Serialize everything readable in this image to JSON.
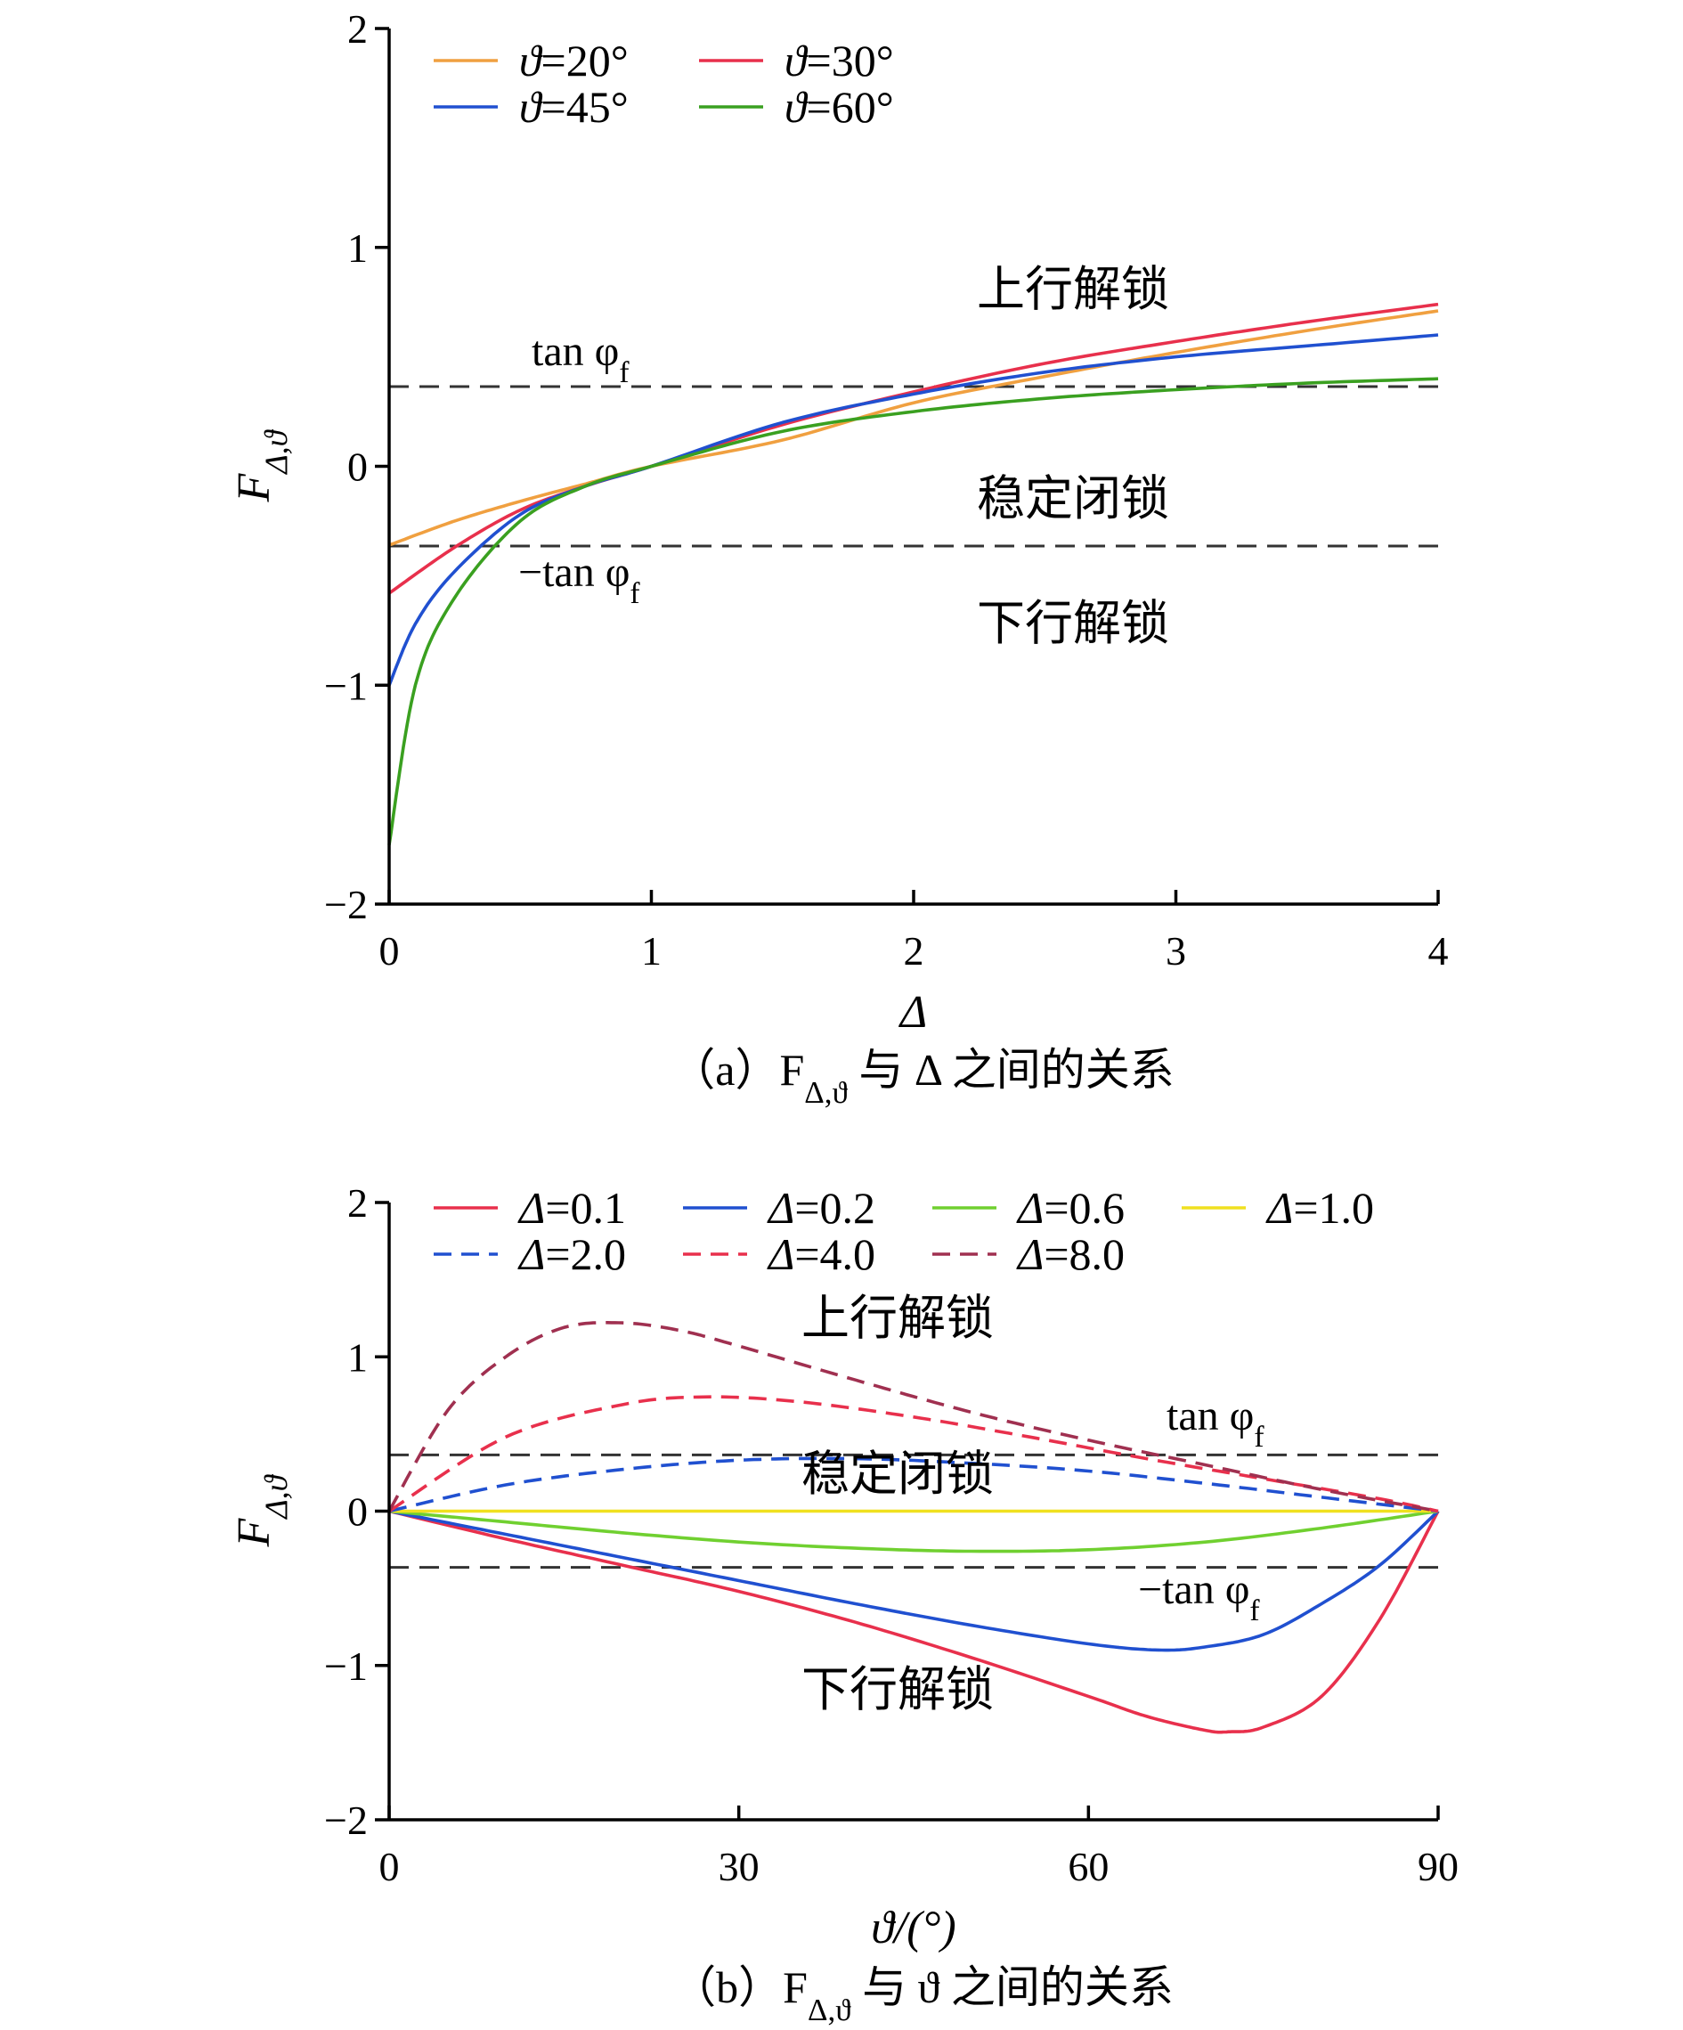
{
  "chart_data": [
    {
      "type": "line",
      "caption": "（a）F_{Δ,ϑ} 与 Δ 之间的关系",
      "xlabel": "Δ",
      "ylabel": "F_{Δ,ϑ}",
      "xlim": [
        0,
        4
      ],
      "ylim": [
        -2,
        2
      ],
      "xticks": [
        0,
        1,
        2,
        3,
        4
      ],
      "yticks": [
        -2,
        -1,
        0,
        1,
        2
      ],
      "tick_labels_x": [
        "0",
        "1",
        "2",
        "3",
        "4"
      ],
      "tick_labels_y": [
        "−2",
        "−1",
        "0",
        "1",
        "2"
      ],
      "grid": false,
      "legend_position": "top-left",
      "series": [
        {
          "name": "ϑ=20°",
          "color": "#F0A040",
          "dash": "solid",
          "x": [
            0,
            0.25,
            0.5,
            0.75,
            1,
            1.5,
            2,
            2.5,
            3,
            3.5,
            4
          ],
          "y": [
            -0.36,
            -0.25,
            -0.16,
            -0.08,
            0,
            0.12,
            0.29,
            0.41,
            0.52,
            0.62,
            0.71
          ]
        },
        {
          "name": "ϑ=30°",
          "color": "#E8304C",
          "dash": "solid",
          "x": [
            0,
            0.25,
            0.5,
            0.75,
            1,
            1.5,
            2,
            2.5,
            3,
            3.5,
            4
          ],
          "y": [
            -0.58,
            -0.37,
            -0.2,
            -0.09,
            0,
            0.19,
            0.34,
            0.47,
            0.57,
            0.66,
            0.74
          ]
        },
        {
          "name": "ϑ=45°",
          "color": "#2050D0",
          "dash": "solid",
          "x": [
            0,
            0.1,
            0.25,
            0.5,
            0.75,
            1,
            1.5,
            2,
            2.5,
            3,
            3.5,
            4
          ],
          "y": [
            -1.0,
            -0.72,
            -0.48,
            -0.22,
            -0.09,
            0,
            0.2,
            0.33,
            0.43,
            0.5,
            0.55,
            0.6
          ]
        },
        {
          "name": "ϑ=60°",
          "color": "#3AA020",
          "dash": "solid",
          "x": [
            0,
            0.1,
            0.25,
            0.5,
            0.75,
            1,
            1.5,
            2,
            2.5,
            3,
            3.5,
            4
          ],
          "y": [
            -1.73,
            -1.0,
            -0.6,
            -0.25,
            -0.09,
            0,
            0.16,
            0.25,
            0.31,
            0.35,
            0.38,
            0.4
          ]
        }
      ],
      "reference_lines": [
        {
          "label": "tan φ_f",
          "y": 0.364
        },
        {
          "label": "−tan φ_f",
          "y": -0.364
        }
      ],
      "region_labels": [
        "上行解锁",
        "稳定闭锁",
        "下行解锁"
      ]
    },
    {
      "type": "line",
      "caption": "（b）F_{Δ,ϑ} 与 ϑ 之间的关系",
      "xlabel": "ϑ/(°)",
      "ylabel": "F_{Δ,ϑ}",
      "xlim": [
        0,
        90
      ],
      "ylim": [
        -2,
        2
      ],
      "xticks": [
        0,
        30,
        60,
        90
      ],
      "yticks": [
        -2,
        -1,
        0,
        1,
        2
      ],
      "tick_labels_x": [
        "0",
        "30",
        "60",
        "90"
      ],
      "tick_labels_y": [
        "−2",
        "−1",
        "0",
        "1",
        "2"
      ],
      "grid": false,
      "legend_position": "top-left",
      "series": [
        {
          "name": "Δ=0.1",
          "color": "#E8304C",
          "dash": "solid",
          "x": [
            0,
            10,
            20,
            30,
            40,
            50,
            60,
            65,
            70,
            72,
            75,
            80,
            85,
            90
          ],
          "y": [
            0,
            -0.18,
            -0.35,
            -0.52,
            -0.72,
            -0.95,
            -1.2,
            -1.33,
            -1.42,
            -1.43,
            -1.4,
            -1.2,
            -0.7,
            0
          ]
        },
        {
          "name": "Δ=0.2",
          "color": "#2050D0",
          "dash": "solid",
          "x": [
            0,
            10,
            20,
            30,
            40,
            50,
            60,
            66,
            70,
            75,
            80,
            85,
            90
          ],
          "y": [
            0,
            -0.15,
            -0.3,
            -0.45,
            -0.6,
            -0.74,
            -0.86,
            -0.9,
            -0.88,
            -0.8,
            -0.6,
            -0.35,
            0
          ]
        },
        {
          "name": "Δ=0.6",
          "color": "#70D030",
          "dash": "solid",
          "x": [
            0,
            10,
            20,
            30,
            40,
            50,
            60,
            70,
            80,
            90
          ],
          "y": [
            0,
            -0.07,
            -0.14,
            -0.2,
            -0.24,
            -0.26,
            -0.25,
            -0.2,
            -0.11,
            0
          ]
        },
        {
          "name": "Δ=1.0",
          "color": "#F0E020",
          "dash": "solid",
          "x": [
            0,
            90
          ],
          "y": [
            0,
            0
          ]
        },
        {
          "name": "Δ=2.0",
          "color": "#2050D0",
          "dash": "dashed",
          "x": [
            0,
            10,
            20,
            30,
            40,
            50,
            60,
            70,
            80,
            90
          ],
          "y": [
            0,
            0.17,
            0.27,
            0.33,
            0.34,
            0.31,
            0.26,
            0.18,
            0.09,
            0
          ]
        },
        {
          "name": "Δ=4.0",
          "color": "#E8304C",
          "dash": "dashed",
          "x": [
            0,
            10,
            20,
            27,
            35,
            45,
            55,
            65,
            75,
            85,
            90
          ],
          "y": [
            0,
            0.48,
            0.69,
            0.74,
            0.71,
            0.61,
            0.48,
            0.34,
            0.21,
            0.08,
            0
          ]
        },
        {
          "name": "Δ=8.0",
          "color": "#A03050",
          "dash": "dashed",
          "x": [
            0,
            5,
            10,
            15,
            20,
            25,
            30,
            40,
            50,
            60,
            70,
            80,
            90
          ],
          "y": [
            0,
            0.65,
            1.0,
            1.19,
            1.22,
            1.17,
            1.07,
            0.85,
            0.64,
            0.46,
            0.3,
            0.14,
            0
          ]
        }
      ],
      "reference_lines": [
        {
          "label": "tan φ_f",
          "y": 0.364
        },
        {
          "label": "−tan φ_f",
          "y": -0.364
        }
      ],
      "region_labels": [
        "上行解锁",
        "稳定闭锁",
        "下行解锁"
      ]
    }
  ]
}
